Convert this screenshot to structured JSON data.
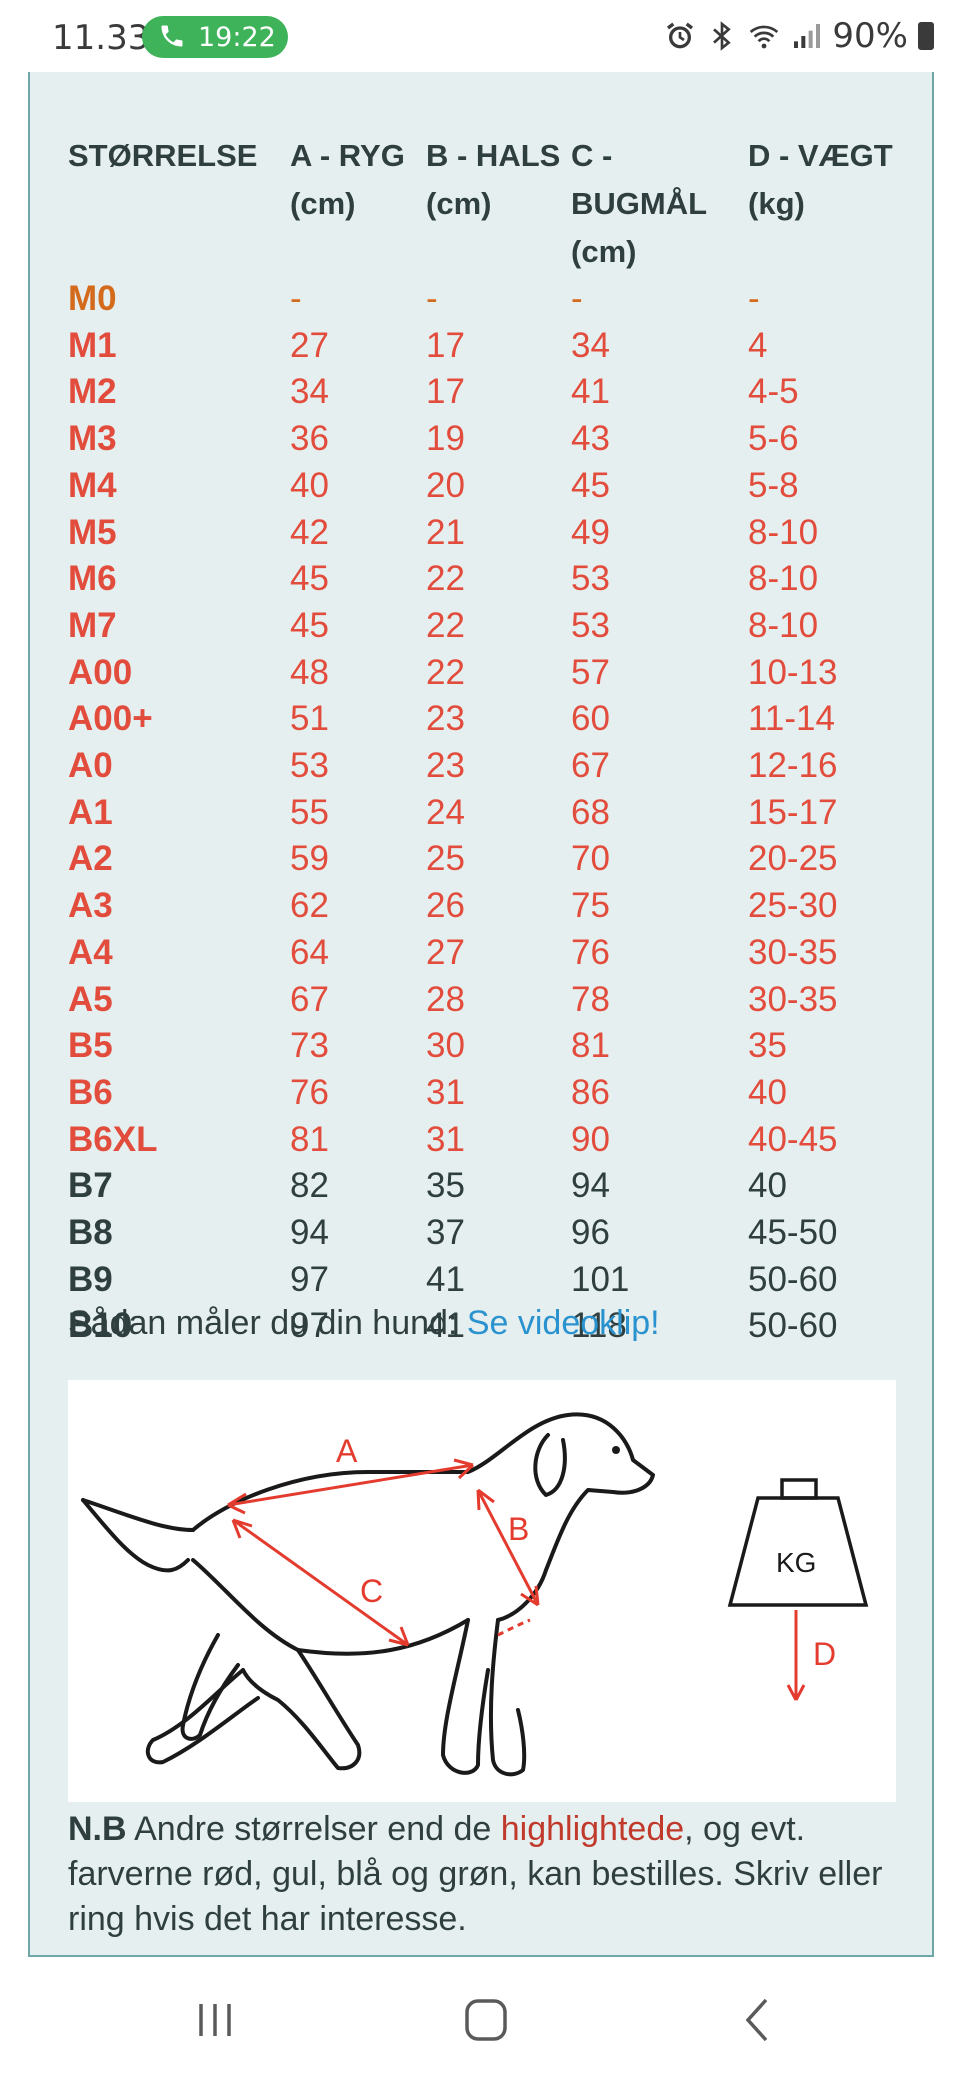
{
  "status_bar": {
    "time": "11.33",
    "call_time": "19:22",
    "battery": "90%"
  },
  "table": {
    "headers": [
      {
        "line1": "STØRRELSE",
        "line2": ""
      },
      {
        "line1": "A - RYG",
        "line2": "(cm)"
      },
      {
        "line1": "B - HALS",
        "line2": "(cm)"
      },
      {
        "line1": "C - BUGMÅL",
        "line2": "(cm)"
      },
      {
        "line1": "D - VÆGT",
        "line2": "(kg)"
      }
    ],
    "rows": [
      {
        "style": "orange",
        "cells": [
          "M0",
          "-",
          "-",
          "-",
          "-"
        ]
      },
      {
        "style": "red",
        "cells": [
          "M1",
          "27",
          "17",
          "34",
          "4"
        ]
      },
      {
        "style": "red",
        "cells": [
          "M2",
          "34",
          "17",
          "41",
          "4-5"
        ]
      },
      {
        "style": "red",
        "cells": [
          "M3",
          "36",
          "19",
          "43",
          "5-6"
        ]
      },
      {
        "style": "red",
        "cells": [
          "M4",
          "40",
          "20",
          "45",
          "5-8"
        ]
      },
      {
        "style": "red",
        "cells": [
          "M5",
          "42",
          "21",
          "49",
          "8-10"
        ]
      },
      {
        "style": "red",
        "cells": [
          "M6",
          "45",
          "22",
          "53",
          "8-10"
        ]
      },
      {
        "style": "red",
        "cells": [
          "M7",
          "45",
          "22",
          "53",
          "8-10"
        ]
      },
      {
        "style": "red",
        "cells": [
          "A00",
          "48",
          "22",
          "57",
          "10-13"
        ]
      },
      {
        "style": "red",
        "cells": [
          "A00+",
          "51",
          "23",
          "60",
          "11-14"
        ]
      },
      {
        "style": "red",
        "cells": [
          "A0",
          "53",
          "23",
          "67",
          "12-16"
        ]
      },
      {
        "style": "red",
        "cells": [
          "A1",
          "55",
          "24",
          "68",
          "15-17"
        ]
      },
      {
        "style": "red",
        "cells": [
          "A2",
          "59",
          "25",
          "70",
          "20-25"
        ]
      },
      {
        "style": "red",
        "cells": [
          "A3",
          "62",
          "26",
          "75",
          "25-30"
        ]
      },
      {
        "style": "red",
        "cells": [
          "A4",
          "64",
          "27",
          "76",
          "30-35"
        ]
      },
      {
        "style": "red",
        "cells": [
          "A5",
          "67",
          "28",
          "78",
          "30-35"
        ]
      },
      {
        "style": "red",
        "cells": [
          "B5",
          "73",
          "30",
          "81",
          "35"
        ]
      },
      {
        "style": "red",
        "cells": [
          "B6",
          "76",
          "31",
          "86",
          "40"
        ]
      },
      {
        "style": "red",
        "cells": [
          "B6XL",
          "81",
          "31",
          "90",
          "40-45"
        ]
      },
      {
        "style": "dark",
        "cells": [
          "B7",
          "82",
          "35",
          "94",
          "40"
        ]
      },
      {
        "style": "dark",
        "cells": [
          "B8",
          "94",
          "37",
          "96",
          "45-50"
        ]
      },
      {
        "style": "dark",
        "cells": [
          "B9",
          "97",
          "41",
          "101",
          "50-60"
        ]
      },
      {
        "style": "dark",
        "cells": [
          "B10",
          "97",
          "41",
          "118",
          "50-60"
        ]
      }
    ]
  },
  "howto": {
    "text": "Sådan måler du din hund: ",
    "link": "Se videoklip!"
  },
  "illustration": {
    "label_a": "A",
    "label_b": "B",
    "label_c": "C",
    "label_d": "D",
    "weight_label": "KG"
  },
  "note": {
    "bold": "N.B",
    "before": " Andre størrelser end de ",
    "highlight": "highlightede",
    "after": ", og evt. farverne rød, gul, blå og grøn, kan bestilles. Skriv eller ring hvis det har interesse."
  },
  "colors": {
    "accent_red": "#e24c3c",
    "accent_orange": "#d46b1c",
    "link_blue": "#2a93cf",
    "card_bg": "#e6efef",
    "call_green": "#3fb35a"
  },
  "icons": [
    "phone-icon",
    "alarm-icon",
    "bluetooth-icon",
    "wifi-icon",
    "signal-icon",
    "battery-icon",
    "recent-apps-icon",
    "home-icon",
    "back-icon"
  ]
}
